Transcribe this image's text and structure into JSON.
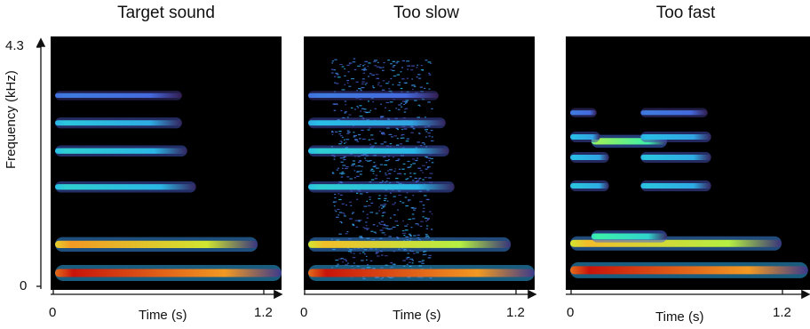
{
  "chart_data": [
    {
      "type": "heatmap",
      "title": "Target sound",
      "xlabel": "Time (s)",
      "ylabel": "Frequency (kHz)",
      "xlim": [
        0,
        1.2
      ],
      "ylim": [
        0,
        4.3
      ],
      "x_ticks": [
        "0",
        "1.2"
      ],
      "y_ticks": [
        "4.3",
        "0"
      ],
      "colormap": "turbo",
      "harmonics": [
        {
          "freq": 0.1,
          "start": 0.0,
          "end": 1.3,
          "intensity": 1.0
        },
        {
          "freq": 0.63,
          "start": 0.0,
          "end": 1.15,
          "intensity": 0.85
        },
        {
          "freq": 1.7,
          "start": 0.0,
          "end": 0.8,
          "intensity": 0.45
        },
        {
          "freq": 2.37,
          "start": 0.0,
          "end": 0.75,
          "intensity": 0.45
        },
        {
          "freq": 2.89,
          "start": 0.0,
          "end": 0.72,
          "intensity": 0.42
        },
        {
          "freq": 3.4,
          "start": 0.0,
          "end": 0.72,
          "intensity": 0.25
        }
      ]
    },
    {
      "type": "heatmap",
      "title": "Too slow",
      "xlabel": "Time (s)",
      "ylabel": "",
      "xlim": [
        0,
        1.2
      ],
      "ylim": [
        0,
        4.3
      ],
      "x_ticks": [
        "0",
        "1.2"
      ],
      "y_ticks": [],
      "colormap": "turbo",
      "harmonics": [
        {
          "freq": 0.1,
          "start": 0.0,
          "end": 1.35,
          "intensity": 1.0
        },
        {
          "freq": 0.63,
          "start": 0.0,
          "end": 1.15,
          "intensity": 0.8
        },
        {
          "freq": 1.7,
          "start": 0.0,
          "end": 0.83,
          "intensity": 0.45
        },
        {
          "freq": 2.37,
          "start": 0.0,
          "end": 0.8,
          "intensity": 0.45
        },
        {
          "freq": 2.89,
          "start": 0.0,
          "end": 0.78,
          "intensity": 0.4
        },
        {
          "freq": 3.4,
          "start": 0.0,
          "end": 0.74,
          "intensity": 0.25
        }
      ],
      "noise": {
        "freq_min": 0.0,
        "freq_max": 4.1,
        "start": 0.13,
        "end": 0.7
      }
    },
    {
      "type": "heatmap",
      "title": "Too fast",
      "xlabel": "Time (s)",
      "ylabel": "",
      "xlim": [
        0,
        1.2
      ],
      "ylim": [
        0,
        4.3
      ],
      "x_ticks": [
        "0",
        "1.2"
      ],
      "y_ticks": [],
      "colormap": "turbo",
      "harmonics": [
        {
          "freq": 0.15,
          "start": 0.0,
          "end": 1.35,
          "intensity": 1.0
        },
        {
          "freq": 0.65,
          "start": 0.0,
          "end": 1.2,
          "intensity": 0.8
        },
        {
          "freq": 0.78,
          "start": 0.12,
          "end": 0.55,
          "intensity": 0.55
        },
        {
          "freq": 1.72,
          "start": 0.0,
          "end": 0.22,
          "intensity": 0.42
        },
        {
          "freq": 1.72,
          "start": 0.4,
          "end": 0.8,
          "intensity": 0.42
        },
        {
          "freq": 2.25,
          "start": 0.0,
          "end": 0.22,
          "intensity": 0.4
        },
        {
          "freq": 2.25,
          "start": 0.4,
          "end": 0.8,
          "intensity": 0.42
        },
        {
          "freq": 2.55,
          "start": 0.12,
          "end": 0.55,
          "intensity": 0.65
        },
        {
          "freq": 2.63,
          "start": 0.0,
          "end": 0.17,
          "intensity": 0.4
        },
        {
          "freq": 2.63,
          "start": 0.4,
          "end": 0.8,
          "intensity": 0.4
        },
        {
          "freq": 3.08,
          "start": 0.0,
          "end": 0.15,
          "intensity": 0.25
        },
        {
          "freq": 3.08,
          "start": 0.4,
          "end": 0.78,
          "intensity": 0.25
        }
      ]
    }
  ]
}
